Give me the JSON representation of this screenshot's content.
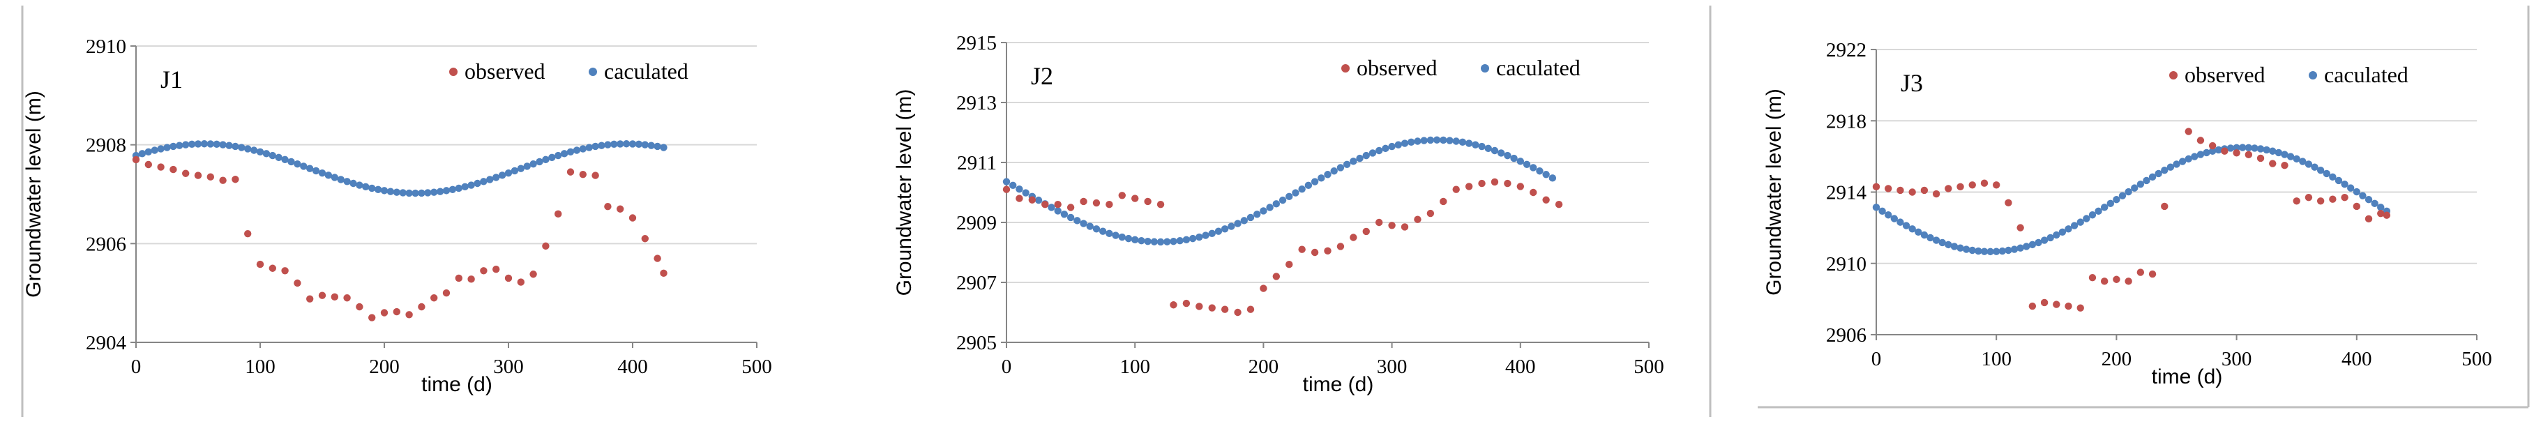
{
  "colors": {
    "observed": "#c0504d",
    "calculated": "#4f81bd",
    "grid": "#d9d9d9",
    "axis": "#868686",
    "separator": "#bfbfbf"
  },
  "chart_data": [
    {
      "type": "scatter",
      "title": "J1",
      "xlabel": "time (d)",
      "ylabel": "Groundwater level (m)",
      "xlim": [
        0,
        500
      ],
      "ylim": [
        2904,
        2910
      ],
      "x_ticks": [
        "0",
        "100",
        "200",
        "300",
        "400",
        "500"
      ],
      "y_ticks": [
        "2904",
        "2906",
        "2908",
        "2910"
      ],
      "legend": [
        "observed",
        "caculated"
      ],
      "grid": true,
      "series": [
        {
          "name": "observed",
          "points": [
            [
              0,
              2907.7
            ],
            [
              10,
              2907.6
            ],
            [
              20,
              2907.55
            ],
            [
              30,
              2907.5
            ],
            [
              40,
              2907.42
            ],
            [
              50,
              2907.38
            ],
            [
              60,
              2907.35
            ],
            [
              70,
              2907.28
            ],
            [
              80,
              2907.3
            ],
            [
              90,
              2906.2
            ],
            [
              100,
              2905.58
            ],
            [
              110,
              2905.5
            ],
            [
              120,
              2905.45
            ],
            [
              130,
              2905.2
            ],
            [
              140,
              2904.88
            ],
            [
              150,
              2904.95
            ],
            [
              160,
              2904.92
            ],
            [
              170,
              2904.9
            ],
            [
              180,
              2904.72
            ],
            [
              190,
              2904.5
            ],
            [
              200,
              2904.6
            ],
            [
              210,
              2904.62
            ],
            [
              220,
              2904.56
            ],
            [
              230,
              2904.72
            ],
            [
              240,
              2904.9
            ],
            [
              250,
              2905.0
            ],
            [
              260,
              2905.3
            ],
            [
              270,
              2905.28
            ],
            [
              280,
              2905.45
            ],
            [
              290,
              2905.48
            ],
            [
              300,
              2905.3
            ],
            [
              310,
              2905.22
            ],
            [
              320,
              2905.38
            ],
            [
              330,
              2905.95
            ],
            [
              340,
              2906.6
            ],
            [
              350,
              2907.45
            ],
            [
              360,
              2907.4
            ],
            [
              370,
              2907.38
            ],
            [
              380,
              2906.75
            ],
            [
              390,
              2906.7
            ],
            [
              400,
              2906.52
            ],
            [
              410,
              2906.1
            ],
            [
              420,
              2905.7
            ],
            [
              425,
              2905.4
            ]
          ]
        },
        {
          "name": "caculated",
          "curve": {
            "mean": 2907.52,
            "amplitude": 0.5,
            "period": 340,
            "peak_day": 55,
            "start": 0,
            "end": 425,
            "step": 5
          }
        }
      ]
    },
    {
      "type": "scatter",
      "title": "J2",
      "xlabel": "time (d)",
      "ylabel": "Groundwater level (m)",
      "xlim": [
        0,
        500
      ],
      "ylim": [
        2905,
        2915
      ],
      "x_ticks": [
        "0",
        "100",
        "200",
        "300",
        "400",
        "500"
      ],
      "y_ticks": [
        "2905",
        "2907",
        "2909",
        "2911",
        "2913",
        "2915"
      ],
      "legend": [
        "observed",
        "caculated"
      ],
      "grid": true,
      "series": [
        {
          "name": "observed",
          "points": [
            [
              0,
              2910.1
            ],
            [
              10,
              2909.8
            ],
            [
              20,
              2909.75
            ],
            [
              30,
              2909.6
            ],
            [
              40,
              2909.6
            ],
            [
              50,
              2909.5
            ],
            [
              60,
              2909.7
            ],
            [
              70,
              2909.65
            ],
            [
              80,
              2909.6
            ],
            [
              90,
              2909.9
            ],
            [
              100,
              2909.8
            ],
            [
              110,
              2909.7
            ],
            [
              120,
              2909.6
            ],
            [
              130,
              2906.25
            ],
            [
              140,
              2906.3
            ],
            [
              150,
              2906.2
            ],
            [
              160,
              2906.15
            ],
            [
              170,
              2906.1
            ],
            [
              180,
              2906.0
            ],
            [
              190,
              2906.1
            ],
            [
              200,
              2906.8
            ],
            [
              210,
              2907.2
            ],
            [
              220,
              2907.6
            ],
            [
              230,
              2908.1
            ],
            [
              240,
              2908.0
            ],
            [
              250,
              2908.05
            ],
            [
              260,
              2908.2
            ],
            [
              270,
              2908.5
            ],
            [
              280,
              2908.7
            ],
            [
              290,
              2909.0
            ],
            [
              300,
              2908.9
            ],
            [
              310,
              2908.85
            ],
            [
              320,
              2909.1
            ],
            [
              330,
              2909.3
            ],
            [
              340,
              2909.7
            ],
            [
              350,
              2910.1
            ],
            [
              360,
              2910.2
            ],
            [
              370,
              2910.3
            ],
            [
              380,
              2910.35
            ],
            [
              390,
              2910.3
            ],
            [
              400,
              2910.2
            ],
            [
              410,
              2910.0
            ],
            [
              420,
              2909.75
            ],
            [
              430,
              2909.6
            ]
          ]
        },
        {
          "name": "caculated",
          "curve": {
            "mean": 2910.05,
            "amplitude": 1.7,
            "period": 430,
            "peak_day": 335,
            "start": 0,
            "end": 425,
            "step": 5
          }
        }
      ]
    },
    {
      "type": "scatter",
      "title": "J3",
      "xlabel": "time (d)",
      "ylabel": "Groundwater level (m)",
      "xlim": [
        0,
        500
      ],
      "ylim": [
        2906,
        2922
      ],
      "x_ticks": [
        "0",
        "100",
        "200",
        "300",
        "400",
        "500"
      ],
      "y_ticks": [
        "2906",
        "2910",
        "2914",
        "2918",
        "2922"
      ],
      "legend": [
        "observed",
        "caculated"
      ],
      "grid": true,
      "series": [
        {
          "name": "observed",
          "points": [
            [
              0,
              2914.3
            ],
            [
              10,
              2914.2
            ],
            [
              20,
              2914.1
            ],
            [
              30,
              2914.0
            ],
            [
              40,
              2914.1
            ],
            [
              50,
              2913.9
            ],
            [
              60,
              2914.2
            ],
            [
              70,
              2914.3
            ],
            [
              80,
              2914.4
            ],
            [
              90,
              2914.5
            ],
            [
              100,
              2914.4
            ],
            [
              110,
              2913.4
            ],
            [
              120,
              2912.0
            ],
            [
              130,
              2907.6
            ],
            [
              140,
              2907.8
            ],
            [
              150,
              2907.7
            ],
            [
              160,
              2907.6
            ],
            [
              170,
              2907.5
            ],
            [
              180,
              2909.2
            ],
            [
              190,
              2909.0
            ],
            [
              200,
              2909.1
            ],
            [
              210,
              2909.0
            ],
            [
              220,
              2909.5
            ],
            [
              230,
              2909.4
            ],
            [
              240,
              2913.2
            ],
            [
              260,
              2917.4
            ],
            [
              270,
              2916.9
            ],
            [
              280,
              2916.6
            ],
            [
              290,
              2916.3
            ],
            [
              300,
              2916.2
            ],
            [
              310,
              2916.1
            ],
            [
              320,
              2915.9
            ],
            [
              330,
              2915.6
            ],
            [
              340,
              2915.5
            ],
            [
              350,
              2913.5
            ],
            [
              360,
              2913.7
            ],
            [
              370,
              2913.5
            ],
            [
              380,
              2913.6
            ],
            [
              390,
              2913.7
            ],
            [
              400,
              2913.2
            ],
            [
              410,
              2912.5
            ],
            [
              420,
              2912.8
            ],
            [
              425,
              2912.7
            ]
          ]
        },
        {
          "name": "caculated",
          "curve": {
            "mean": 2913.58,
            "amplitude": 2.92,
            "period": 420,
            "peak_day": 305,
            "start": 0,
            "end": 425,
            "step": 5
          }
        }
      ]
    }
  ]
}
